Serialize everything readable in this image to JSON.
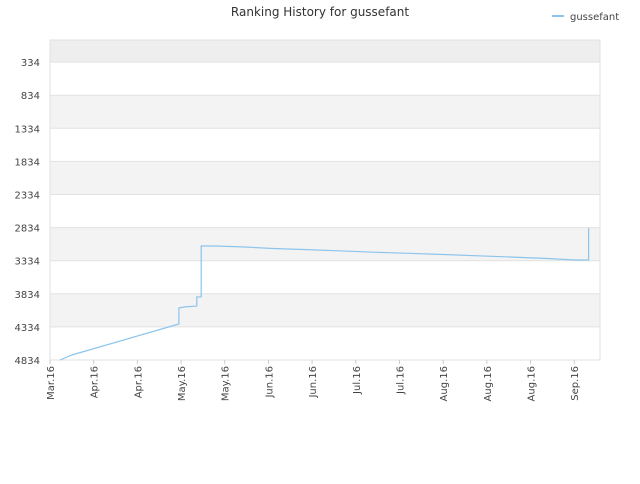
{
  "chart_data": {
    "type": "line",
    "title": "Ranking History for gussefant",
    "x": [
      0.23,
      0.5,
      2.95,
      2.95,
      3.07,
      3.36,
      3.36,
      3.46,
      3.46,
      3.8,
      4.46,
      5.1,
      5.8,
      6.6,
      7.4,
      8.2,
      9.0,
      9.8,
      10.6,
      11.4,
      12.01,
      12.33,
      12.33
    ],
    "series": [
      {
        "name": "gussefant",
        "color": "#8cc4ec",
        "values": [
          4834,
          4759,
          4290,
          4048,
          4033,
          4018,
          3882,
          3880,
          3112,
          3112,
          3127,
          3150,
          3165,
          3185,
          3205,
          3222,
          3240,
          3260,
          3280,
          3300,
          3323,
          3323,
          2840
        ]
      }
    ],
    "xlim": [
      0,
      12.59
    ],
    "xticks": [
      {
        "value": 0,
        "label": "Mar.16"
      },
      {
        "value": 1,
        "label": "Apr.16"
      },
      {
        "value": 2,
        "label": "Apr.16"
      },
      {
        "value": 3,
        "label": "May.16"
      },
      {
        "value": 4,
        "label": "May.16"
      },
      {
        "value": 5,
        "label": "Jun.16"
      },
      {
        "value": 6,
        "label": "Jun.16"
      },
      {
        "value": 7,
        "label": "Jul.16"
      },
      {
        "value": 8,
        "label": "Jul.16"
      },
      {
        "value": 9,
        "label": "Aug.16"
      },
      {
        "value": 10,
        "label": "Aug.16"
      },
      {
        "value": 11,
        "label": "Aug.16"
      },
      {
        "value": 12,
        "label": "Sep.16"
      }
    ],
    "ylim": [
      4834,
      0
    ],
    "yticks": [
      334,
      834,
      1334,
      1834,
      2334,
      2834,
      3334,
      3834,
      4334,
      4834
    ],
    "grid": true,
    "legend": "top-right"
  }
}
